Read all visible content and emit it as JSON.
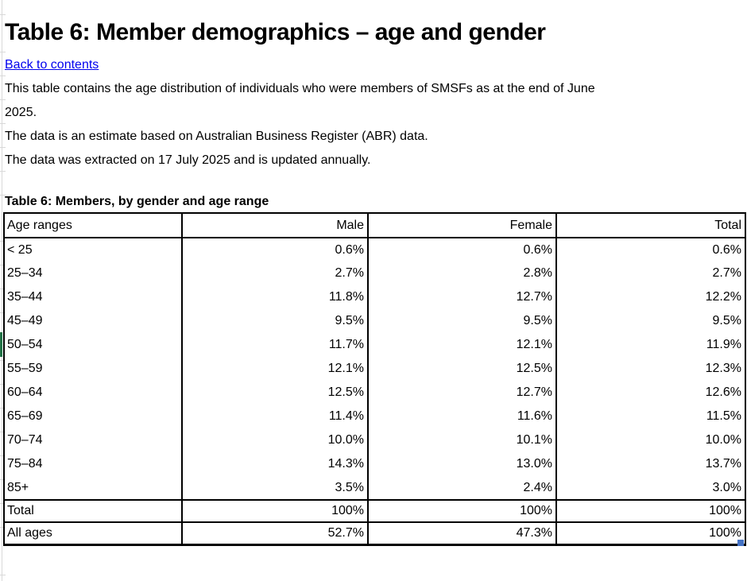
{
  "header": {
    "title": "Table 6: Member demographics – age and gender",
    "back_link": "Back to contents"
  },
  "intro": {
    "lines": [
      "This table contains the age distribution of individuals who were members of SMSFs as at the end of June",
      "2025.",
      "The data is an estimate based on Australian Business Register (ABR) data.",
      "The data was extracted on 17 July 2025 and is updated annually."
    ]
  },
  "table": {
    "caption": "Table 6: Members, by gender and age range",
    "columns": [
      "Age ranges",
      "Male",
      "Female",
      "Total"
    ],
    "rows": [
      [
        "< 25",
        "0.6%",
        "0.6%",
        "0.6%"
      ],
      [
        "25–34",
        "2.7%",
        "2.8%",
        "2.7%"
      ],
      [
        "35–44",
        "11.8%",
        "12.7%",
        "12.2%"
      ],
      [
        "45–49",
        "9.5%",
        "9.5%",
        "9.5%"
      ],
      [
        "50–54",
        "11.7%",
        "12.1%",
        "11.9%"
      ],
      [
        "55–59",
        "12.1%",
        "12.5%",
        "12.3%"
      ],
      [
        "60–64",
        "12.5%",
        "12.7%",
        "12.6%"
      ],
      [
        "65–69",
        "11.4%",
        "11.6%",
        "11.5%"
      ],
      [
        "70–74",
        "10.0%",
        "10.1%",
        "10.0%"
      ],
      [
        "75–84",
        "14.3%",
        "13.0%",
        "13.7%"
      ],
      [
        "85+",
        "3.5%",
        "2.4%",
        "3.0%"
      ],
      [
        "Total",
        "100%",
        "100%",
        "100%"
      ],
      [
        "All ages",
        "52.7%",
        "47.3%",
        "100%"
      ]
    ]
  },
  "colors": {
    "link_blue": "#0000ee",
    "selection_green": "#217346",
    "fill_handle_blue": "#4472c4",
    "gridline_gray": "#d8d8d8",
    "table_border": "#000000"
  }
}
